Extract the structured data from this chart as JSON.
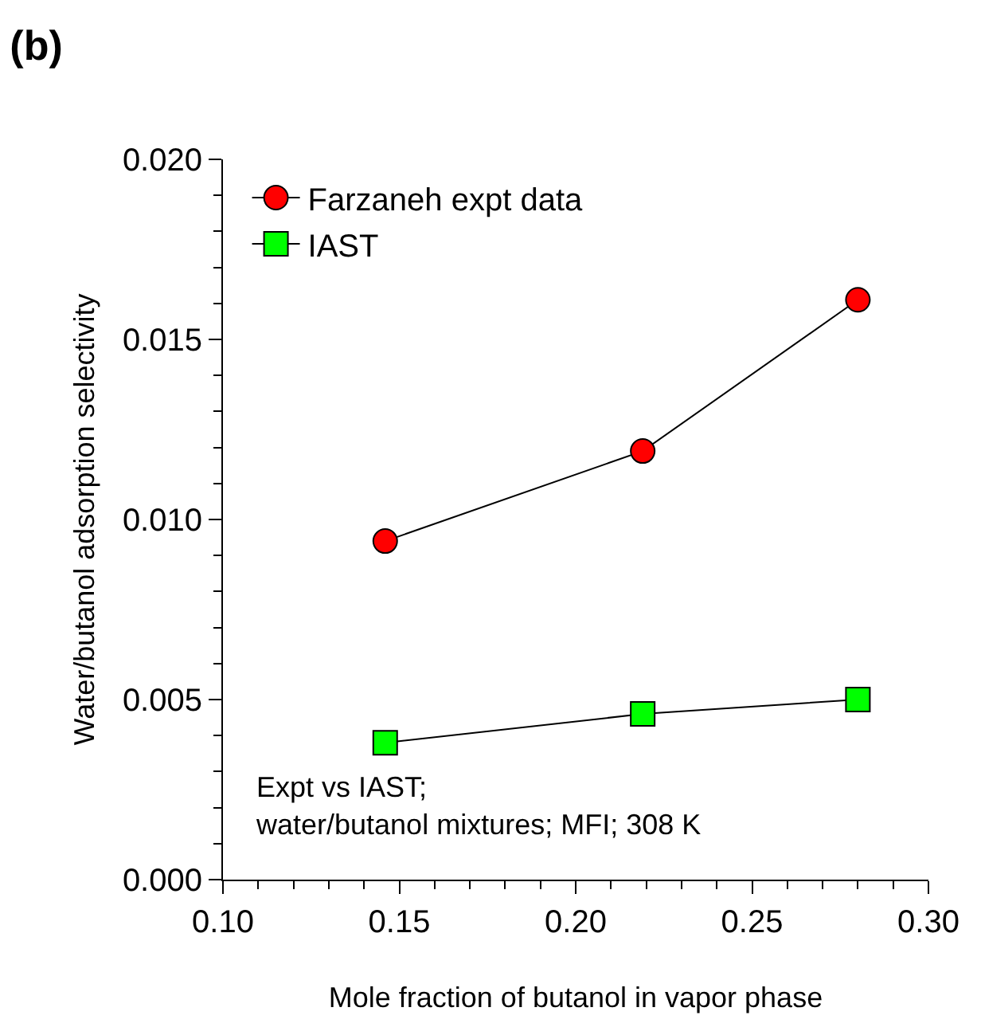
{
  "chart_data": {
    "type": "line",
    "title": "(b)",
    "xlabel": "Mole fraction of butanol in vapor phase",
    "ylabel": "Water/butanol adsorption selectivity",
    "x": [
      0.146,
      0.219,
      0.28
    ],
    "series": [
      {
        "name": "Farzaneh expt data",
        "color": "#ff0000",
        "marker": "circle",
        "values": [
          0.0094,
          0.0119,
          0.0161
        ]
      },
      {
        "name": "IAST",
        "color": "#00ff00",
        "marker": "square",
        "values": [
          0.0038,
          0.0046,
          0.005
        ]
      }
    ],
    "xlim": [
      0.1,
      0.3
    ],
    "xticks": [
      {
        "value": 0.1,
        "label": "0.10"
      },
      {
        "value": 0.15,
        "label": "0.15"
      },
      {
        "value": 0.2,
        "label": "0.20"
      },
      {
        "value": 0.25,
        "label": "0.25"
      },
      {
        "value": 0.3,
        "label": "0.30"
      }
    ],
    "ylim": [
      0,
      0.02
    ],
    "yticks": [
      {
        "value": 0,
        "label": "0.000"
      },
      {
        "value": 0.005,
        "label": "0.005"
      },
      {
        "value": 0.01,
        "label": "0.010"
      },
      {
        "value": 0.015,
        "label": "0.015"
      },
      {
        "value": 0.02,
        "label": "0.020"
      }
    ],
    "annotations": [
      "Expt vs IAST;\nwater/butanol mixtures; MFI; 308 K"
    ],
    "legend": "top left",
    "line_style": "solid"
  }
}
